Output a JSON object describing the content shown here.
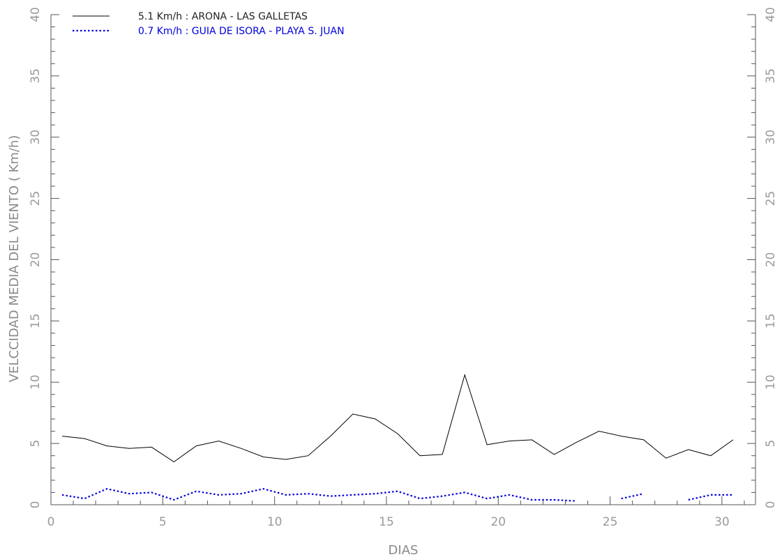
{
  "chart_data": {
    "type": "line",
    "xlabel": "DIAS",
    "ylabel": "VELCCIDAD MEDIA DEL VIENTO ( Km/h)",
    "xlim": [
      0,
      31.5
    ],
    "ylim": [
      0,
      40
    ],
    "x_ticks": [
      "0",
      "5",
      "10",
      "15",
      "20",
      "25",
      "30"
    ],
    "y_ticks": [
      "0",
      "5",
      "10",
      "15",
      "20",
      "25",
      "30",
      "35",
      "40"
    ],
    "y_ticks_right": [
      "0",
      "5",
      "10",
      "15",
      "20",
      "25",
      "30",
      "35",
      "40"
    ],
    "grid": false,
    "legend_position": "top-left",
    "series": [
      {
        "name": "5.1 Km/h : ARONA - LAS GALLETAS",
        "color": "#000000",
        "style": "solid",
        "x": [
          0.5,
          1.5,
          2.5,
          3.5,
          4.5,
          5.5,
          6.5,
          7.5,
          8.5,
          9.5,
          10.5,
          11.5,
          12.5,
          13.5,
          14.5,
          15.5,
          16.5,
          17.5,
          18.5,
          19.5,
          20.5,
          21.5,
          22.5,
          23.5,
          24.5,
          25.5,
          26.5,
          27.5,
          28.5,
          29.5,
          30.5
        ],
        "y": [
          5.6,
          5.4,
          4.8,
          4.6,
          4.7,
          3.5,
          4.8,
          5.2,
          4.6,
          3.9,
          3.7,
          4.0,
          5.6,
          7.4,
          7.0,
          5.8,
          4.0,
          4.1,
          10.6,
          4.9,
          5.2,
          5.3,
          4.1,
          5.1,
          6.0,
          5.6,
          5.3,
          3.8,
          4.5,
          4.0,
          5.3
        ]
      },
      {
        "name": "0.7 Km/h : GUIA DE ISORA - PLAYA S. JUAN",
        "color": "#0000dd",
        "style": "dotted",
        "x": [
          0.5,
          1.5,
          2.5,
          3.5,
          4.5,
          5.5,
          6.5,
          7.5,
          8.5,
          9.5,
          10.5,
          11.5,
          12.5,
          13.5,
          14.5,
          15.5,
          16.5,
          17.5,
          18.5,
          19.5,
          20.5,
          21.5,
          22.5,
          23.5,
          24.5,
          25.5,
          26.5,
          27.5,
          28.5,
          29.5,
          30.5
        ],
        "y": [
          0.8,
          0.5,
          1.3,
          0.9,
          1.0,
          0.4,
          1.1,
          0.8,
          0.9,
          1.3,
          0.8,
          0.9,
          0.7,
          0.8,
          0.9,
          1.1,
          0.5,
          0.7,
          1.0,
          0.5,
          0.8,
          0.4,
          0.4,
          0.3,
          null,
          0.5,
          0.9,
          null,
          0.4,
          0.8,
          0.8
        ]
      }
    ]
  }
}
